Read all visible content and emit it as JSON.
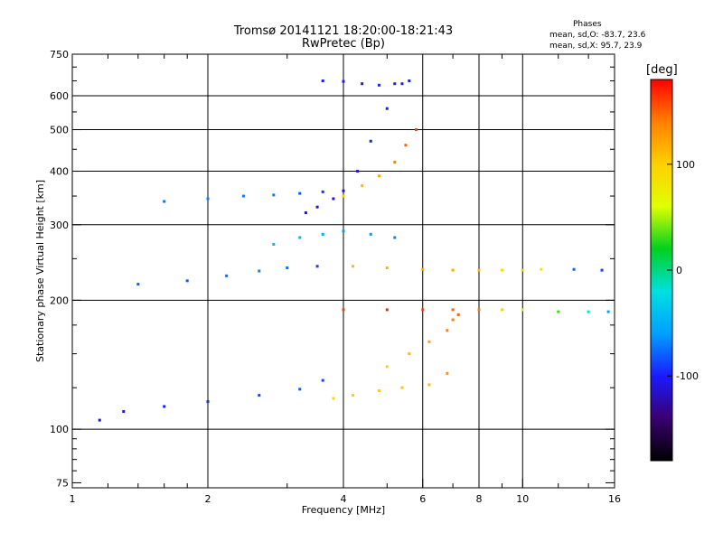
{
  "title_line1": "Tromsø 20141121 18:20:00-18:21:43",
  "title_line2": "RwPretec (Bp)",
  "stats": {
    "heading": "Phases",
    "line1": "mean, sd,O: -83.7, 23.6",
    "line2": "mean, sd,X:  95.7, 23.9"
  },
  "colorbar": {
    "unit": "[deg]",
    "range": [
      -180,
      180
    ],
    "ticks": [
      100,
      0,
      -100
    ],
    "stops": [
      "#000000",
      "#3a0070",
      "#1a1aff",
      "#00a0ff",
      "#00e0e0",
      "#00d020",
      "#e0ff00",
      "#ffd000",
      "#ff8000",
      "#ff0000"
    ]
  },
  "chart_data": {
    "type": "scatter",
    "title": "Tromsø 20141121 18:20:00-18:21:43",
    "subtitle": "RwPretec (Bp)",
    "xlabel": "Frequency [MHz]",
    "ylabel": "Stationary phase Virtual Height [km]",
    "xscale": "log",
    "yscale": "log",
    "xlim": [
      1,
      16
    ],
    "ylim": [
      73,
      750
    ],
    "xticks": [
      1,
      2,
      4,
      6,
      8,
      10,
      16
    ],
    "yticks": [
      75,
      100,
      200,
      300,
      400,
      500,
      600,
      750
    ],
    "grid_x": [
      2,
      4,
      6,
      8,
      10
    ],
    "grid_y": [
      100,
      200,
      300,
      400,
      500,
      600
    ],
    "color_quantity": "phase [deg]",
    "traces": [
      {
        "x": [
          1.15,
          1.3,
          1.6,
          2.0,
          2.6,
          3.2,
          3.6
        ],
        "y": [
          105,
          110,
          113,
          116,
          120,
          124,
          130
        ],
        "phase": [
          -110,
          -105,
          -100,
          -95,
          -85,
          -80,
          -90
        ]
      },
      {
        "x": [
          1.4,
          1.8,
          2.2,
          2.6,
          3.0,
          3.5
        ],
        "y": [
          218,
          222,
          228,
          234,
          238,
          240
        ],
        "phase": [
          -80,
          -80,
          -75,
          -70,
          -75,
          -90
        ]
      },
      {
        "x": [
          1.6,
          2.0,
          2.4,
          2.8,
          3.2,
          3.6
        ],
        "y": [
          340,
          345,
          350,
          352,
          355,
          358
        ],
        "phase": [
          -75,
          -70,
          -70,
          -72,
          -80,
          -95
        ]
      },
      {
        "x": [
          3.3,
          3.5,
          3.8,
          4.0,
          4.3,
          4.6,
          5.0,
          5.4
        ],
        "y": [
          320,
          330,
          345,
          360,
          400,
          470,
          560,
          640
        ],
        "phase": [
          -110,
          -110,
          -115,
          -110,
          -105,
          -100,
          -100,
          -100
        ]
      },
      {
        "x": [
          3.6,
          4.0,
          4.4,
          4.8,
          5.2,
          5.6
        ],
        "y": [
          650,
          648,
          640,
          635,
          640,
          650
        ],
        "phase": [
          -100,
          -100,
          -100,
          -95,
          -100,
          -100
        ]
      },
      {
        "x": [
          4.0,
          4.4,
          4.8,
          5.2,
          5.5,
          5.8
        ],
        "y": [
          350,
          370,
          390,
          420,
          460,
          500
        ],
        "phase": [
          100,
          110,
          120,
          140,
          150,
          160
        ]
      },
      {
        "x": [
          3.8,
          4.2,
          4.8,
          5.4,
          6.2,
          6.8,
          7.0
        ],
        "y": [
          118,
          120,
          123,
          125,
          127,
          135,
          180
        ],
        "phase": [
          95,
          100,
          100,
          105,
          110,
          130,
          140
        ]
      },
      {
        "x": [
          5.0,
          5.6,
          6.2,
          6.8,
          7.2
        ],
        "y": [
          140,
          150,
          160,
          170,
          185
        ],
        "phase": [
          100,
          110,
          120,
          140,
          150
        ]
      },
      {
        "x": [
          4.0,
          5.0,
          6.0,
          7.0,
          8.0,
          9.0,
          10.0,
          12.0,
          14.0,
          15.5
        ],
        "y": [
          190,
          190,
          190,
          190,
          190,
          190,
          190,
          188,
          188,
          188
        ],
        "phase": [
          160,
          170,
          160,
          150,
          140,
          100,
          70,
          30,
          -20,
          -60
        ]
      },
      {
        "x": [
          2.8,
          3.2,
          3.6,
          4.0,
          4.6,
          5.2
        ],
        "y": [
          270,
          280,
          285,
          290,
          285,
          280
        ],
        "phase": [
          -40,
          -45,
          -50,
          -60,
          -60,
          -70
        ]
      },
      {
        "x": [
          4.2,
          5.0,
          6.0,
          7.0,
          8.0,
          9.0,
          10.0,
          11.0,
          13.0,
          15.0
        ],
        "y": [
          240,
          238,
          236,
          235,
          235,
          235,
          235,
          236,
          236,
          235
        ],
        "phase": [
          110,
          115,
          120,
          120,
          110,
          90,
          100,
          80,
          -80,
          -90
        ]
      }
    ]
  }
}
